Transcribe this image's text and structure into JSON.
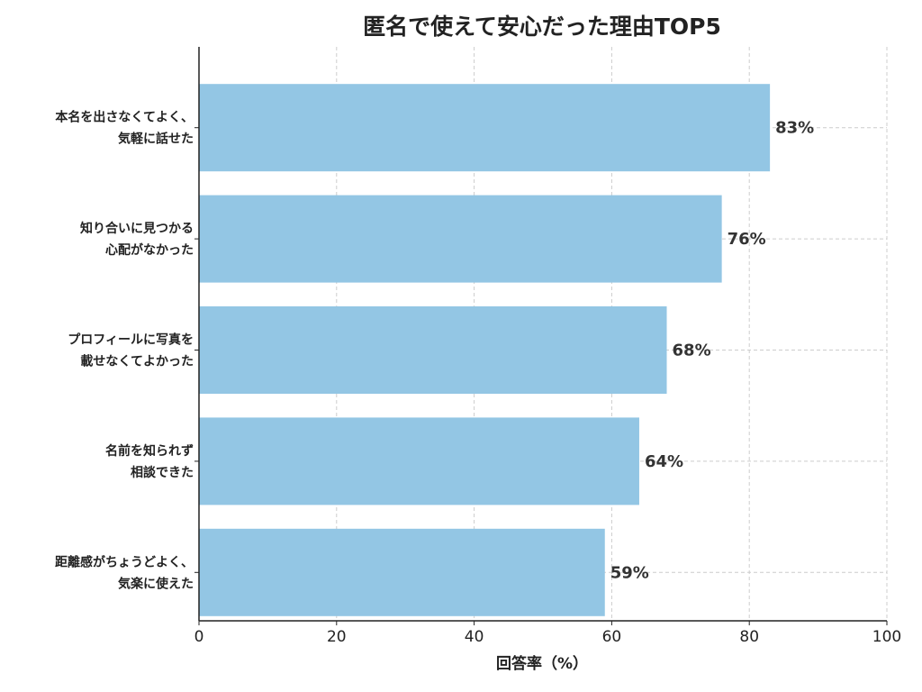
{
  "chart_data": {
    "type": "bar",
    "orientation": "horizontal",
    "title": "匿名で使えて安心だった理由TOP5",
    "xlabel": "回答率（%）",
    "ylabel": "",
    "xlim": [
      0,
      100
    ],
    "xticks": [
      0,
      20,
      40,
      60,
      80,
      100
    ],
    "grid": true,
    "categories": [
      [
        "本名を出さなくてよく、",
        "気軽に話せた"
      ],
      [
        "知り合いに見つかる",
        "心配がなかった"
      ],
      [
        "プロフィールに写真を",
        "載せなくてよかった"
      ],
      [
        "名前を知られず",
        "相談できた"
      ],
      [
        "距離感がちょうどよく、",
        "気楽に使えた"
      ]
    ],
    "values": [
      83,
      76,
      68,
      64,
      59
    ],
    "value_suffix": "%",
    "bar_color": "#93c6e4"
  }
}
